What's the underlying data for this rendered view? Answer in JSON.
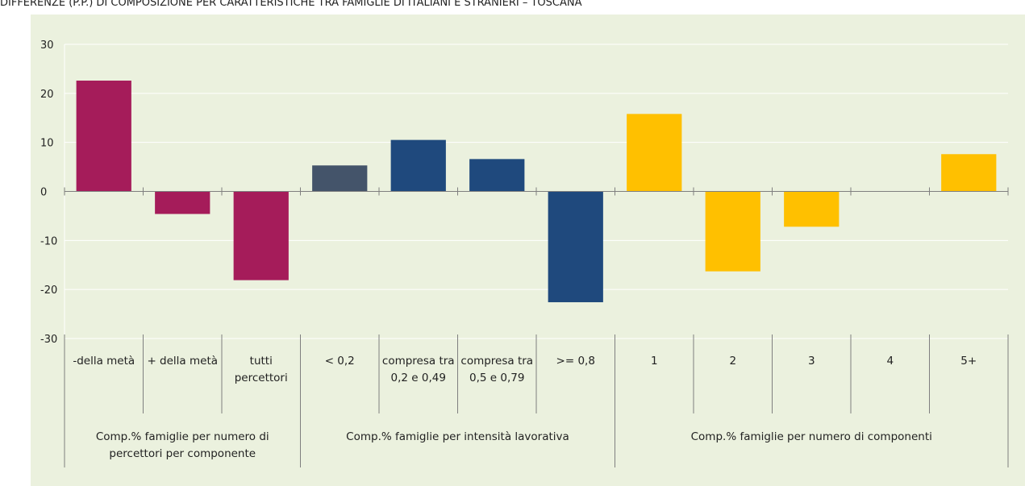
{
  "chart_data": {
    "type": "bar",
    "title": "DIFFERENZE (P.P.) DI COMPOSIZIONE PER CARATTERISTICHE TRA FAMIGLIE DI ITALIANI E STRANIERI – TOSCANA",
    "ylim": [
      -30,
      30
    ],
    "yticks": [
      -30,
      -20,
      -10,
      0,
      10,
      20,
      30
    ],
    "grid": true,
    "groups": [
      {
        "name": "Comp.% famiglie per numero di percettori per componente",
        "categories": [
          "-della metà",
          "+ della metà",
          "tutti percettori"
        ],
        "values": [
          22.6,
          -4.6,
          -18.1
        ],
        "colors": [
          "#a51c5a",
          "#a51c5a",
          "#a51c5a"
        ]
      },
      {
        "name": "Comp.% famiglie per intensità lavorativa",
        "categories": [
          "< 0,2",
          "compresa tra 0,2 e 0,49",
          "compresa tra 0,5 e 0,79",
          ">= 0,8"
        ],
        "values": [
          5.3,
          10.5,
          6.6,
          -22.6
        ],
        "colors": [
          "#44546a",
          "#1f497d",
          "#1f497d",
          "#1f497d"
        ]
      },
      {
        "name": "Comp.% famiglie per numero di componenti",
        "categories": [
          "1",
          "2",
          "3",
          "4",
          "5+"
        ],
        "values": [
          15.8,
          -16.3,
          -7.2,
          0,
          7.6
        ],
        "colors": [
          "#ffc000",
          "#ffc000",
          "#ffc000",
          "#ffc000",
          "#ffc000"
        ]
      }
    ]
  }
}
